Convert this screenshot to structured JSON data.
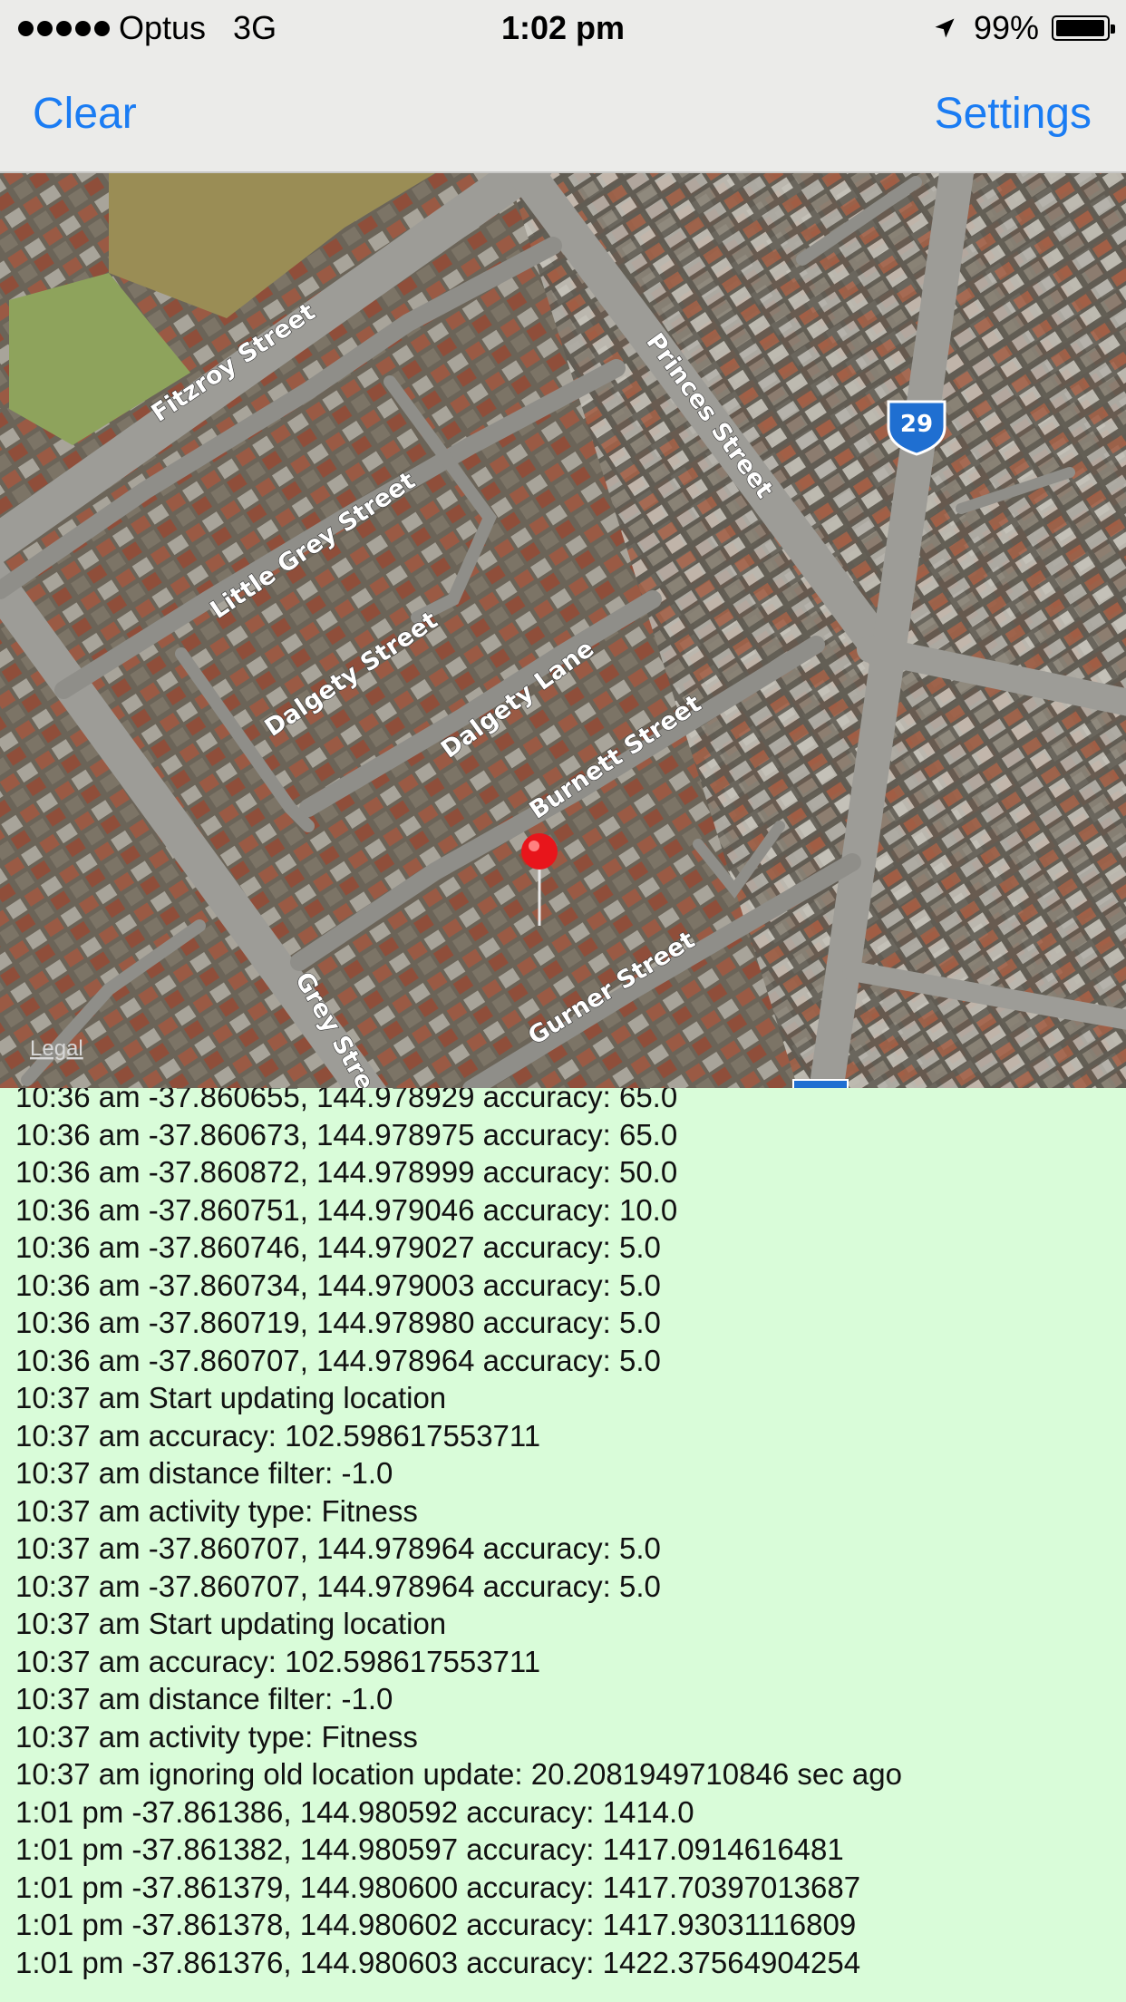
{
  "status_bar": {
    "carrier": "Optus",
    "network": "3G",
    "time": "1:02 pm",
    "battery_text": "99%",
    "battery_level": 0.99,
    "signal_icon": "signal-dots-icon",
    "location_icon": "location-arrow-icon"
  },
  "nav": {
    "left_button": "Clear",
    "right_button": "Settings",
    "accent_color": "#1a7cf3"
  },
  "map": {
    "type": "satellite",
    "street_labels": [
      "Fitzroy Street",
      "Princes Street",
      "Little Grey Street",
      "Dalgety Street",
      "Dalgety Lane",
      "Burnett Street",
      "Grey Stre",
      "Gurner Street"
    ],
    "route_shield": "29",
    "legal_link": "Legal",
    "pin_icon": "map-pin-icon"
  },
  "log": {
    "background_color": "#d9fcd9",
    "lines": [
      "10:36 am -37.860655, 144.978929 accuracy: 65.0",
      "10:36 am -37.860673, 144.978975 accuracy: 65.0",
      "10:36 am -37.860872, 144.978999 accuracy: 50.0",
      "10:36 am -37.860751, 144.979046 accuracy: 10.0",
      "10:36 am -37.860746, 144.979027 accuracy: 5.0",
      "10:36 am -37.860734, 144.979003 accuracy: 5.0",
      "10:36 am -37.860719, 144.978980 accuracy: 5.0",
      "10:36 am -37.860707, 144.978964 accuracy: 5.0",
      "10:37 am Start updating location",
      "10:37 am accuracy: 102.598617553711",
      "10:37 am distance filter: -1.0",
      "10:37 am activity type: Fitness",
      "10:37 am -37.860707, 144.978964 accuracy: 5.0",
      "10:37 am -37.860707, 144.978964 accuracy: 5.0",
      "10:37 am Start updating location",
      "10:37 am accuracy: 102.598617553711",
      "10:37 am distance filter: -1.0",
      "10:37 am activity type: Fitness",
      "10:37 am ignoring old location update: 20.2081949710846 sec ago",
      "1:01 pm -37.861386, 144.980592 accuracy: 1414.0",
      "1:01 pm -37.861382, 144.980597 accuracy: 1417.0914616481",
      "1:01 pm -37.861379, 144.980600 accuracy: 1417.70397013687",
      "1:01 pm -37.861378, 144.980602 accuracy: 1417.93031116809",
      "1:01 pm -37.861376, 144.980603 accuracy: 1422.37564904254"
    ]
  }
}
